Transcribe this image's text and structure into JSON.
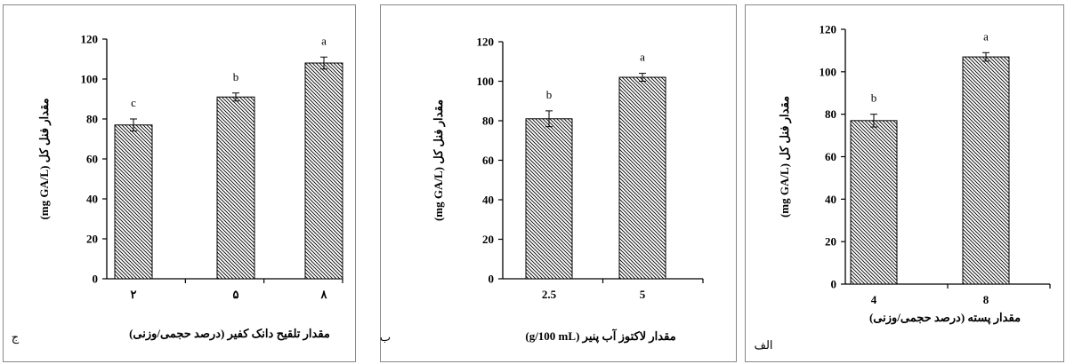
{
  "chart_data": [
    {
      "type": "bar",
      "panel_label": "ج",
      "categories": [
        "۲",
        "۵",
        "۸"
      ],
      "values": [
        77,
        91,
        108
      ],
      "errors": [
        3,
        2,
        3
      ],
      "significance": [
        "c",
        "b",
        "a"
      ],
      "xlabel": "مقدار تلقیح دانک کفیر (درصد حجمی/وزنی)",
      "ylabel_fa": "مقدار فنل کل",
      "ylabel_unit": "(mg GA/L)",
      "ylim": [
        0,
        120
      ],
      "yticks": [
        0,
        20,
        40,
        60,
        80,
        100,
        120
      ],
      "grid": false
    },
    {
      "type": "bar",
      "panel_label": "ب",
      "categories": [
        "2.5",
        "5"
      ],
      "values": [
        81,
        102
      ],
      "errors": [
        4,
        2
      ],
      "significance": [
        "b",
        "a"
      ],
      "xlabel": "مقدار لاکتوز آب پنیر (g/100 mL)",
      "ylabel_fa": "مقدار فنل کل",
      "ylabel_unit": "(mg GA/L)",
      "ylim": [
        0,
        120
      ],
      "yticks": [
        0,
        20,
        40,
        60,
        80,
        100,
        120
      ],
      "grid": false
    },
    {
      "type": "bar",
      "panel_label": "الف",
      "categories": [
        "4",
        "8"
      ],
      "values": [
        77,
        107
      ],
      "errors": [
        3,
        2
      ],
      "significance": [
        "b",
        "a"
      ],
      "xlabel": "مقدار پسته (درصد حجمی/وزنی)",
      "ylabel_fa": "مقدار فنل کل",
      "ylabel_unit": "(mg GA/L)",
      "ylim": [
        0,
        120
      ],
      "yticks": [
        0,
        20,
        40,
        60,
        80,
        100,
        120
      ],
      "grid": false
    }
  ],
  "colors": {
    "bar_hatch": "#000000",
    "bar_fill": "#ffffff",
    "frame": "#888888"
  }
}
